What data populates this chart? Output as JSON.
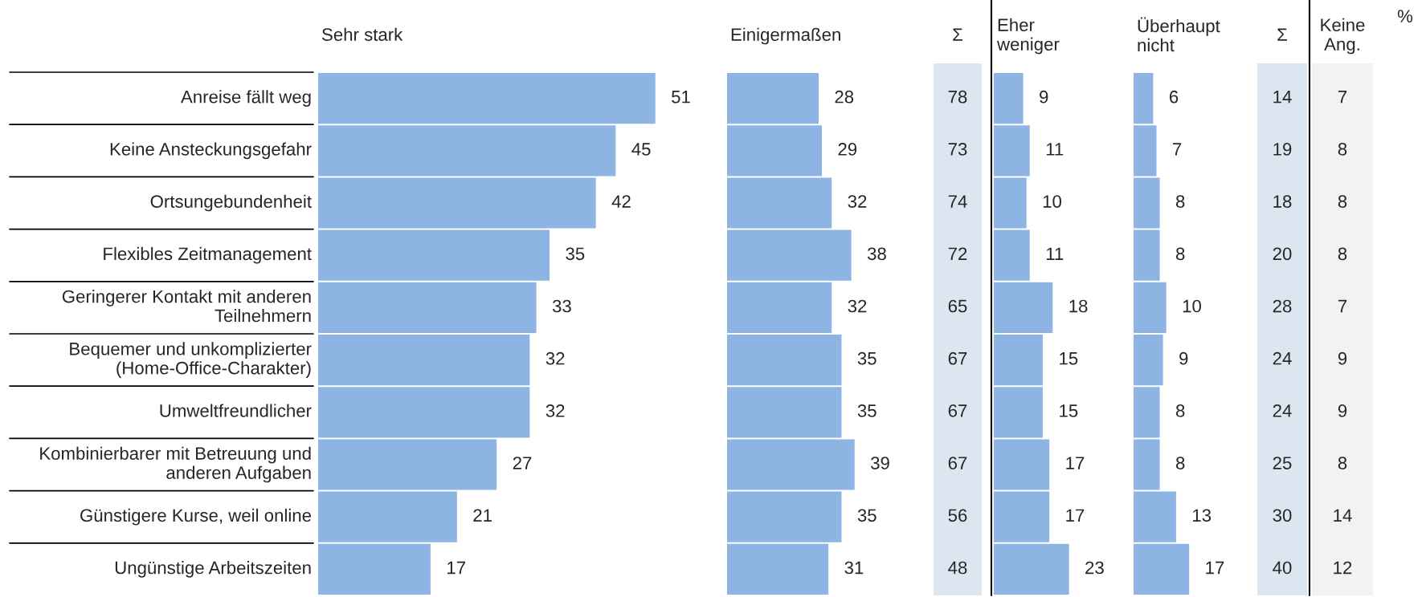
{
  "chart_data": [
    {
      "type": "bar",
      "orientation": "horizontal",
      "title": "Sehr stark",
      "categories": [
        "Anreise fällt weg",
        "Keine Ansteckungsgefahr",
        "Ortsungebundenheit",
        "Flexibles Zeitmanagement",
        "Geringerer Kontakt mit anderen Teilnehmern",
        "Bequemer und unkomplizierter (Home-Office-Charakter)",
        "Umweltfreundlicher",
        "Kombinierbarer mit Betreuung und anderen Aufgaben",
        "Günstigere Kurse, weil online",
        "Ungünstige Arbeitszeiten"
      ],
      "values": [
        51,
        45,
        42,
        35,
        33,
        32,
        32,
        27,
        21,
        17
      ],
      "color": "#8eb4e3",
      "data_labels": true,
      "tick_labels": "y"
    },
    {
      "type": "bar",
      "orientation": "horizontal",
      "title": "Einigermaßen",
      "values": [
        28,
        29,
        32,
        38,
        32,
        35,
        35,
        39,
        35,
        31
      ],
      "color": "#8eb4e3",
      "data_labels": true,
      "tick_labels": false
    },
    {
      "type": "other",
      "title": "Σ",
      "values": [
        78,
        73,
        74,
        72,
        65,
        67,
        67,
        67,
        56,
        48
      ],
      "color": "#dce6f0",
      "data_labels": true
    },
    {
      "type": "bar",
      "orientation": "horizontal",
      "title": "Eher\nweniger",
      "values": [
        9,
        11,
        10,
        11,
        18,
        15,
        15,
        17,
        17,
        23
      ],
      "color": "#8eb4e3",
      "data_labels": true,
      "tick_labels": false
    },
    {
      "type": "bar",
      "orientation": "horizontal",
      "title": "Überhaupt\nnicht",
      "values": [
        6,
        7,
        8,
        8,
        10,
        9,
        8,
        8,
        13,
        17
      ],
      "color": "#8eb4e3",
      "data_labels": true,
      "tick_labels": false
    },
    {
      "type": "other",
      "title": "Σ",
      "values": [
        14,
        19,
        18,
        20,
        28,
        24,
        24,
        25,
        30,
        40
      ],
      "color": "#dce6f0",
      "data_labels": true
    },
    {
      "type": "other",
      "title": "Keine\nAng.",
      "values": [
        7,
        8,
        8,
        8,
        7,
        9,
        9,
        8,
        14,
        12
      ],
      "color": "#f2f2f2",
      "data_labels": true,
      "annotations": [
        "%"
      ]
    }
  ]
}
